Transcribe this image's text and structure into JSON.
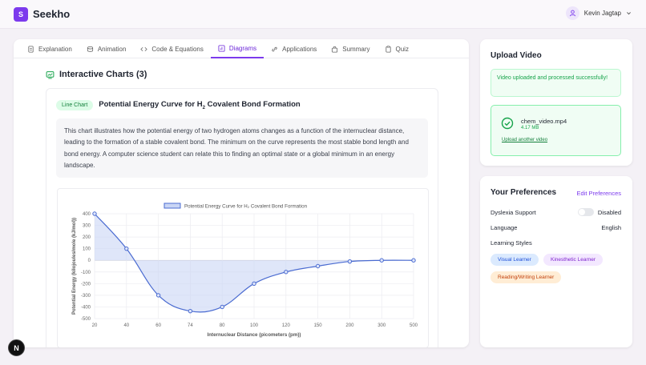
{
  "app": {
    "logo_letter": "S",
    "name": "Seekho"
  },
  "user": {
    "name": "Kevin Jagtap"
  },
  "tabs": [
    {
      "label": "Explanation",
      "icon": "document-icon"
    },
    {
      "label": "Animation",
      "icon": "layers-icon"
    },
    {
      "label": "Code & Equations",
      "icon": "code-icon"
    },
    {
      "label": "Diagrams",
      "icon": "chart-icon",
      "active": true
    },
    {
      "label": "Applications",
      "icon": "link-icon"
    },
    {
      "label": "Summary",
      "icon": "bag-icon"
    },
    {
      "label": "Quiz",
      "icon": "clipboard-icon"
    }
  ],
  "section": {
    "title": "Interactive Charts (3)"
  },
  "chart_card": {
    "badge": "Line Chart",
    "title_pre": "Potential Energy Curve for H",
    "title_sub": "2",
    "title_post": " Covalent Bond Formation",
    "description": "This chart illustrates how the potential energy of two hydrogen atoms changes as a function of the internuclear distance, leading to the formation of a stable covalent bond. The minimum on the curve represents the most stable bond length and bond energy. A computer science student can relate this to finding an optimal state or a global minimum in an energy landscape."
  },
  "chart_data": {
    "type": "line",
    "legend": "Potential Energy Curve for H₂ Covalent Bond Formation",
    "xlabel": "Internuclear Distance (picometers (pm))",
    "ylabel": "Potential Energy (kilojoules/mole (kJ/mol))",
    "categories": [
      "20",
      "40",
      "60",
      "74",
      "80",
      "100",
      "120",
      "150",
      "200",
      "300",
      "500"
    ],
    "series": [
      {
        "name": "Potential Energy Curve for H₂ Covalent Bond Formation",
        "values": [
          400,
          100,
          -300,
          -436,
          -400,
          -200,
          -100,
          -50,
          -10,
          0,
          0
        ]
      }
    ],
    "ylim": [
      -500,
      400
    ],
    "yticks": [
      400,
      300,
      200,
      100,
      0,
      -100,
      -200,
      -300,
      -400,
      -500
    ],
    "fill": true,
    "line_color": "#4a6bd1",
    "fill_color": "#c9d5f5",
    "grid": true
  },
  "upload": {
    "title": "Upload Video",
    "success": "Video uploaded and processed successfully!",
    "file_name": "chem_video.mp4",
    "file_size": "4.17 MB",
    "upload_another": "Upload another video"
  },
  "preferences": {
    "title": "Your Preferences",
    "edit": "Edit Preferences",
    "dyslexia_label": "Dyslexia Support",
    "dyslexia_value": "Disabled",
    "language_label": "Language",
    "language_value": "English",
    "styles_label": "Learning Styles",
    "styles": [
      "Visual Learner",
      "Kinesthetic Learner",
      "Reading/Writing Learner"
    ]
  },
  "fab": {
    "label": "N"
  },
  "colors": {
    "accent": "#7c3aed",
    "success": "#16a34a"
  }
}
